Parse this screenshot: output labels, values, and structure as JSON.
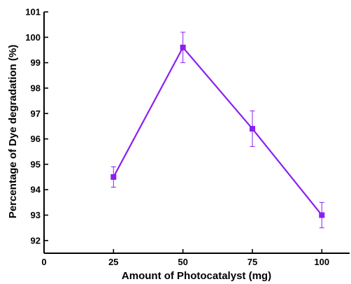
{
  "chart_data": {
    "type": "line",
    "title": "",
    "xlabel": "Amount of Photocatalyst (mg)",
    "ylabel": "Percentage of Dye degradation (%)",
    "xlim": [
      0,
      110
    ],
    "ylim": [
      91.5,
      101
    ],
    "x_ticks": [
      0,
      25,
      50,
      75,
      100
    ],
    "y_ticks": [
      92,
      93,
      94,
      95,
      96,
      97,
      98,
      99,
      100,
      101
    ],
    "grid": false,
    "legend": "none",
    "series": [
      {
        "x": [
          25,
          50,
          75,
          100
        ],
        "y": [
          94.5,
          99.6,
          96.4,
          93.0
        ],
        "error_low": [
          94.1,
          99.0,
          95.7,
          92.5
        ],
        "error_high": [
          94.9,
          100.2,
          97.1,
          93.5
        ],
        "marker": "square",
        "color": "#8a1ff0"
      }
    ]
  }
}
